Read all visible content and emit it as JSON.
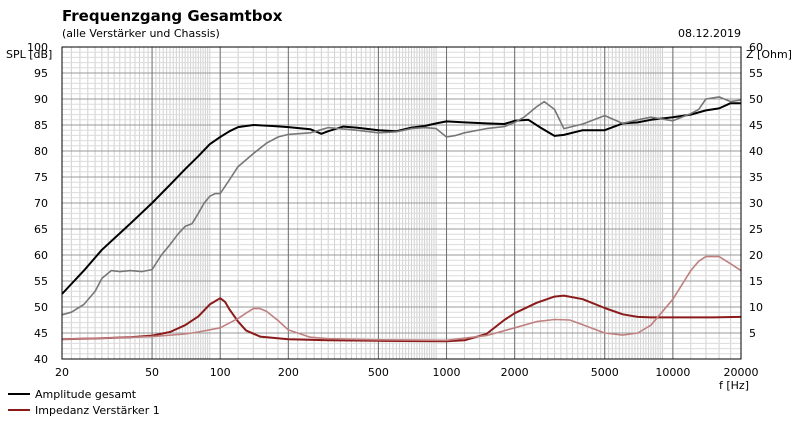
{
  "chart_data": {
    "type": "line",
    "title": "Frequenzgang Gesamtbox",
    "subtitle": "(alle Verstärker und Chassis)",
    "date": "08.12.2019",
    "ylabel_left": "SPL [dB]",
    "ylabel_right": "Z [Ohm]",
    "xlabel": "f [Hz]",
    "x_scale": "log",
    "xlim": [
      20,
      20000
    ],
    "ylim_left": [
      40,
      100
    ],
    "ylim_right": [
      0,
      60
    ],
    "x_ticks": [
      20,
      50,
      100,
      200,
      500,
      1000,
      2000,
      5000,
      10000,
      20000
    ],
    "x_tick_labels": [
      "20",
      "50",
      "100",
      "200",
      "500",
      "1000",
      "2000",
      "5000",
      "10000",
      "20000"
    ],
    "y_ticks_left": [
      "100",
      "95",
      "90",
      "85",
      "80",
      "75",
      "70",
      "65",
      "60",
      "55",
      "50",
      "45",
      "40"
    ],
    "y_ticks_right": [
      "60",
      "55",
      "50",
      "45",
      "40",
      "35",
      "30",
      "25",
      "20",
      "15",
      "10",
      "5"
    ],
    "grid": true,
    "legend": {
      "position": "bottom-left",
      "entries": [
        {
          "label": "Amplitude gesamt",
          "color": "#000000"
        },
        {
          "label": "Impedanz Verstärker 1",
          "color": "#8b1a1a"
        }
      ]
    },
    "series": [
      {
        "name": "Amplitude gesamt",
        "axis": "left",
        "color": "#000000",
        "x": [
          20,
          25,
          30,
          40,
          50,
          60,
          70,
          80,
          90,
          100,
          110,
          120,
          140,
          170,
          200,
          250,
          280,
          300,
          350,
          400,
          500,
          600,
          700,
          800,
          900,
          1000,
          1200,
          1500,
          1800,
          2000,
          2300,
          2600,
          3000,
          3300,
          4000,
          5000,
          6000,
          7000,
          8000,
          10000,
          12000,
          14000,
          16000,
          18000,
          20000
        ],
        "y": [
          52.5,
          57,
          61,
          66,
          70,
          73.5,
          76.5,
          79,
          81.3,
          82.7,
          83.8,
          84.6,
          85,
          84.8,
          84.6,
          84.2,
          83.3,
          83.8,
          84.7,
          84.5,
          84.0,
          83.8,
          84.5,
          84.8,
          85.3,
          85.7,
          85.5,
          85.3,
          85.2,
          85.8,
          86.0,
          84.5,
          82.9,
          83.1,
          84.0,
          84.0,
          85.3,
          85.5,
          86.0,
          86.5,
          87.0,
          87.8,
          88.2,
          89.2,
          89.2
        ]
      },
      {
        "name": "",
        "axis": "left",
        "color": "#777777",
        "x": [
          20,
          22,
          25,
          28,
          30,
          33,
          36,
          40,
          45,
          50,
          55,
          60,
          65,
          70,
          75,
          80,
          85,
          90,
          95,
          100,
          110,
          120,
          140,
          160,
          180,
          200,
          250,
          300,
          400,
          500,
          600,
          700,
          800,
          900,
          1000,
          1100,
          1200,
          1500,
          1800,
          2000,
          2200,
          2500,
          2700,
          3000,
          3300,
          4000,
          5000,
          6000,
          7000,
          8000,
          10000,
          12000,
          13000,
          14000,
          16000,
          18000,
          20000
        ],
        "y": [
          48.5,
          49,
          50.5,
          53,
          55.5,
          57,
          56.8,
          57,
          56.8,
          57.2,
          60,
          62,
          64,
          65.5,
          66,
          68,
          70,
          71.3,
          71.8,
          71.8,
          74.5,
          77,
          79.5,
          81.5,
          82.7,
          83.2,
          83.5,
          84.5,
          84.0,
          83.5,
          83.7,
          84.3,
          84.5,
          84.3,
          82.7,
          83.0,
          83.5,
          84.3,
          84.7,
          85.5,
          86.5,
          88.5,
          89.5,
          88.0,
          84.3,
          85.2,
          86.8,
          85.3,
          86.0,
          86.5,
          85.8,
          87.2,
          88.0,
          90.0,
          90.4,
          89.5,
          89.8
        ]
      },
      {
        "name": "Impedanz Verstärker 1",
        "axis": "right",
        "color": "#8b1a1a",
        "x": [
          20,
          30,
          40,
          50,
          60,
          70,
          80,
          90,
          100,
          105,
          110,
          120,
          130,
          150,
          200,
          300,
          500,
          1000,
          1200,
          1500,
          1800,
          2000,
          2500,
          3000,
          3300,
          4000,
          5000,
          6000,
          7000,
          8000,
          10000,
          15000,
          20000
        ],
        "y": [
          3.8,
          4.0,
          4.2,
          4.5,
          5.2,
          6.5,
          8.2,
          10.5,
          11.7,
          11.0,
          9.5,
          7.2,
          5.5,
          4.3,
          3.8,
          3.6,
          3.5,
          3.4,
          3.6,
          4.8,
          7.5,
          8.8,
          10.8,
          12.0,
          12.2,
          11.5,
          9.8,
          8.6,
          8.1,
          8.0,
          8.0,
          8.0,
          8.1
        ]
      },
      {
        "name": "",
        "axis": "right",
        "color": "#c08080",
        "x": [
          20,
          30,
          50,
          70,
          80,
          100,
          120,
          130,
          140,
          150,
          160,
          180,
          200,
          250,
          300,
          500,
          1000,
          1500,
          2000,
          2500,
          3000,
          3500,
          4000,
          5000,
          6000,
          7000,
          8000,
          10000,
          12000,
          13000,
          14000,
          16000,
          18000,
          20000
        ],
        "y": [
          3.8,
          4.0,
          4.3,
          4.8,
          5.2,
          6.0,
          7.8,
          8.8,
          9.7,
          9.7,
          9.2,
          7.4,
          5.6,
          4.2,
          3.9,
          3.7,
          3.6,
          4.5,
          6.0,
          7.2,
          7.6,
          7.5,
          6.6,
          5.0,
          4.6,
          5.0,
          6.5,
          11.5,
          17.0,
          18.8,
          19.7,
          19.7,
          18.3,
          17.0
        ]
      }
    ]
  }
}
